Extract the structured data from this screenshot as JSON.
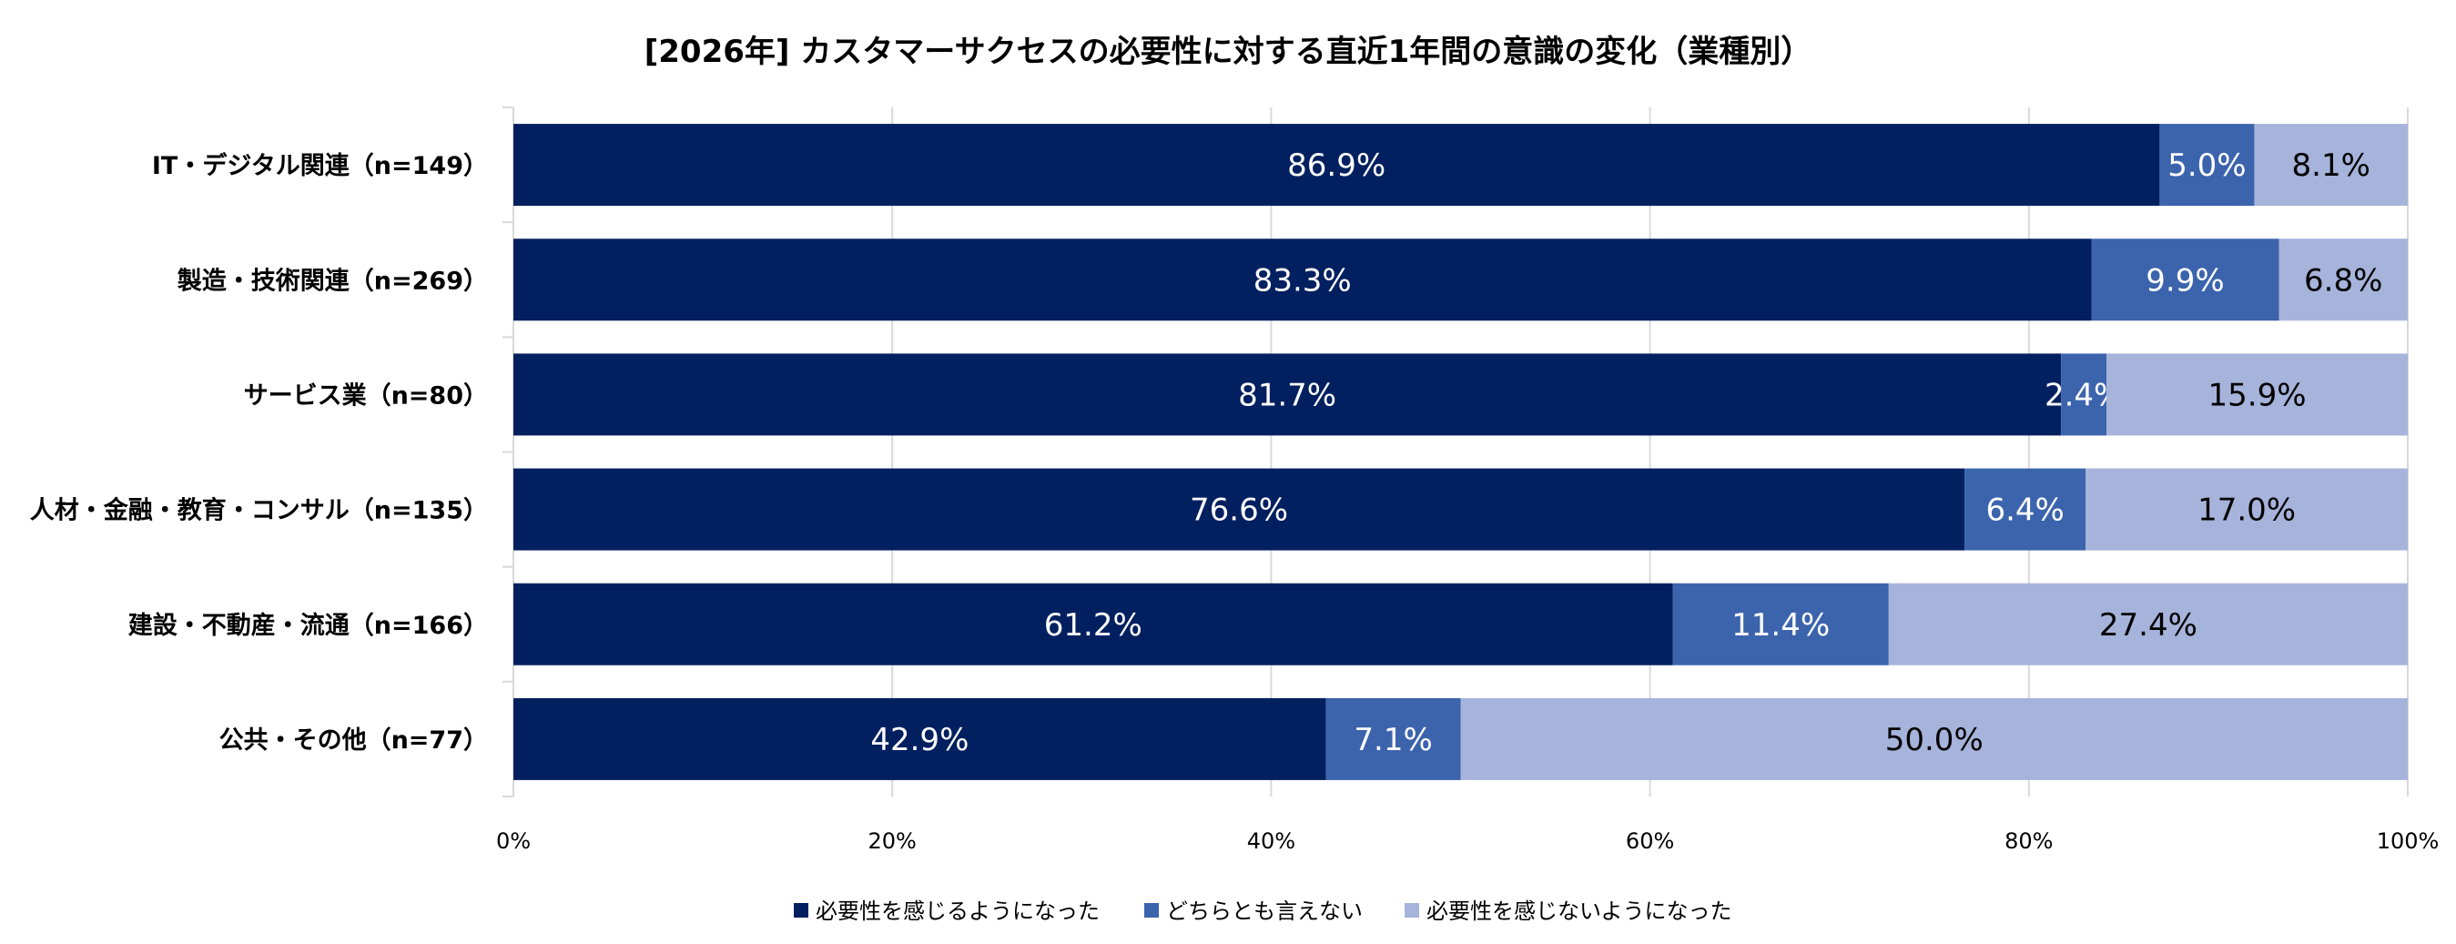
{
  "chart_data": {
    "type": "bar",
    "orientation": "horizontal",
    "stacked": true,
    "title": "[2026年] カスタマーサクセスの必要性に対する直近1年間の意識の変化（業種別）",
    "categories": [
      "IT・デジタル関連（n=149）",
      "製造・技術関連（n=269）",
      "サービス業（n=80）",
      "人材・金融・教育・コンサル（n=135）",
      "建設・不動産・流通（n=166）",
      "公共・その他（n=77）"
    ],
    "series": [
      {
        "name": "必要性を感じるようになった",
        "color": "#02205f",
        "label_color": "#ffffff",
        "values": [
          86.9,
          83.3,
          81.7,
          76.6,
          61.2,
          42.9
        ]
      },
      {
        "name": "どちらとも言えない",
        "color": "#3c64ad",
        "label_color": "#ffffff",
        "values": [
          5.0,
          9.9,
          2.4,
          6.4,
          11.4,
          7.1
        ]
      },
      {
        "name": "必要性を感じないようになった",
        "color": "#a6b3da",
        "label_color": "#000000",
        "values": [
          8.1,
          6.8,
          15.9,
          17.0,
          27.4,
          50.0
        ]
      }
    ],
    "xlim": [
      0,
      100
    ],
    "xticks": [
      "0%",
      "20%",
      "40%",
      "60%",
      "80%",
      "100%"
    ],
    "grid": true,
    "legend": "bottom",
    "label_format": "%"
  }
}
